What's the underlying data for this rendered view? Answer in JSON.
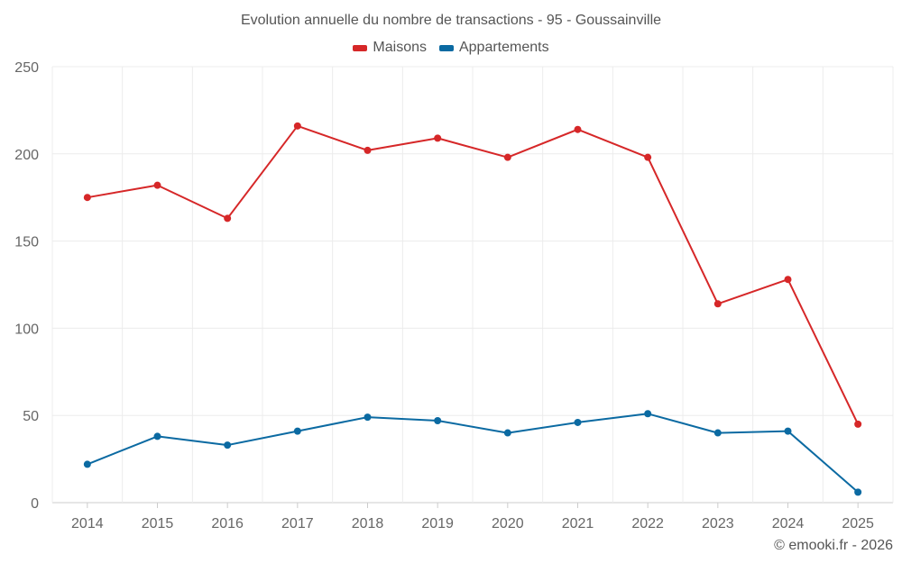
{
  "chart_data": {
    "type": "line",
    "title": "Evolution annuelle du nombre de transactions - 95 - Goussainville",
    "categories": [
      "2014",
      "2015",
      "2016",
      "2017",
      "2018",
      "2019",
      "2020",
      "2021",
      "2022",
      "2023",
      "2024",
      "2025"
    ],
    "series": [
      {
        "name": "Maisons",
        "color": "#d62728",
        "values": [
          175,
          182,
          163,
          216,
          202,
          209,
          198,
          214,
          198,
          114,
          128,
          45
        ]
      },
      {
        "name": "Appartements",
        "color": "#0b6aa2",
        "values": [
          22,
          38,
          33,
          41,
          49,
          47,
          40,
          46,
          51,
          40,
          41,
          6
        ]
      }
    ],
    "yticks": [
      "0",
      "50",
      "100",
      "150",
      "200",
      "250"
    ],
    "ylim": [
      0,
      250
    ],
    "xlabel": "",
    "ylabel": "",
    "grid": true,
    "legend": "top-center"
  },
  "credit": "© emooki.fr - 2026"
}
